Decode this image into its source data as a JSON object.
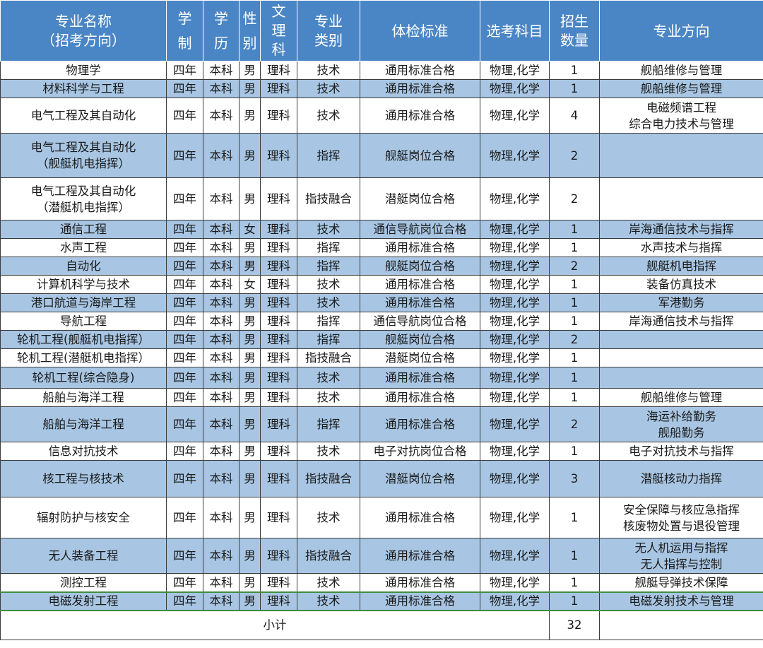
{
  "headers": {
    "major": [
      "专业名称",
      "（招考方向）"
    ],
    "duration": [
      "学",
      "制"
    ],
    "degree": [
      "学",
      "历"
    ],
    "gender": [
      "性",
      "别"
    ],
    "subject_type": [
      "文",
      "理",
      "科"
    ],
    "category": [
      "专业",
      "类别"
    ],
    "exam_standard": "体检标准",
    "elective": "选考科目",
    "quota": [
      "招生",
      "数量"
    ],
    "direction": "专业方向"
  },
  "rows": [
    {
      "major": [
        "物理学"
      ],
      "duration": "四年",
      "degree": "本科",
      "gender": "男",
      "subject_type": "理科",
      "category": "技术",
      "exam_standard": "通用标准合格",
      "elective": "物理,化学",
      "quota": "1",
      "direction": [
        "舰船维修与管理"
      ]
    },
    {
      "major": [
        "材料科学与工程"
      ],
      "duration": "四年",
      "degree": "本科",
      "gender": "男",
      "subject_type": "理科",
      "category": "技术",
      "exam_standard": "通用标准合格",
      "elective": "物理,化学",
      "quota": "1",
      "direction": [
        "舰船维修与管理"
      ]
    },
    {
      "major": [
        "电气工程及其自动化"
      ],
      "duration": "四年",
      "degree": "本科",
      "gender": "男",
      "subject_type": "理科",
      "category": "技术",
      "exam_standard": "通用标准合格",
      "elective": "物理,化学",
      "quota": "4",
      "direction": [
        "电磁频谱工程",
        "综合电力技术与管理"
      ]
    },
    {
      "major": [
        "电气工程及其自动化",
        "（舰艇机电指挥）"
      ],
      "duration": "四年",
      "degree": "本科",
      "gender": "男",
      "subject_type": "理科",
      "category": "指挥",
      "exam_standard": "舰艇岗位合格",
      "elective": "物理,化学",
      "quota": "2",
      "direction": []
    },
    {
      "major": [
        "电气工程及其自动化",
        "（潜艇机电指挥）"
      ],
      "duration": "四年",
      "degree": "本科",
      "gender": "男",
      "subject_type": "理科",
      "category": "指技融合",
      "exam_standard": "潜艇岗位合格",
      "elective": "物理,化学",
      "quota": "2",
      "direction": []
    },
    {
      "major": [
        "通信工程"
      ],
      "duration": "四年",
      "degree": "本科",
      "gender": "女",
      "subject_type": "理科",
      "category": "技术",
      "exam_standard": "通信导航岗位合格",
      "elective": "物理,化学",
      "quota": "1",
      "direction": [
        "岸海通信技术与指挥"
      ]
    },
    {
      "major": [
        "水声工程"
      ],
      "duration": "四年",
      "degree": "本科",
      "gender": "男",
      "subject_type": "理科",
      "category": "指挥",
      "exam_standard": "通用标准合格",
      "elective": "物理,化学",
      "quota": "1",
      "direction": [
        "水声技术与指挥"
      ]
    },
    {
      "major": [
        "自动化"
      ],
      "duration": "四年",
      "degree": "本科",
      "gender": "男",
      "subject_type": "理科",
      "category": "指挥",
      "exam_standard": "舰艇岗位合格",
      "elective": "物理,化学",
      "quota": "2",
      "direction": [
        "舰艇机电指挥"
      ]
    },
    {
      "major": [
        "计算机科学与技术"
      ],
      "duration": "四年",
      "degree": "本科",
      "gender": "女",
      "subject_type": "理科",
      "category": "技术",
      "exam_standard": "通用标准合格",
      "elective": "物理,化学",
      "quota": "1",
      "direction": [
        "装备仿真技术"
      ]
    },
    {
      "major": [
        "港口航道与海岸工程"
      ],
      "duration": "四年",
      "degree": "本科",
      "gender": "男",
      "subject_type": "理科",
      "category": "技术",
      "exam_standard": "通用标准合格",
      "elective": "物理,化学",
      "quota": "1",
      "direction": [
        "军港勤务"
      ]
    },
    {
      "major": [
        "导航工程"
      ],
      "duration": "四年",
      "degree": "本科",
      "gender": "男",
      "subject_type": "理科",
      "category": "指挥",
      "exam_standard": "通信导航岗位合格",
      "elective": "物理,化学",
      "quota": "1",
      "direction": [
        "岸海通信技术与指挥"
      ]
    },
    {
      "major": [
        "轮机工程(舰艇机电指挥）"
      ],
      "duration": "四年",
      "degree": "本科",
      "gender": "男",
      "subject_type": "理科",
      "category": "指挥",
      "exam_standard": "舰艇岗位合格",
      "elective": "物理,化学",
      "quota": "2",
      "direction": []
    },
    {
      "major": [
        "轮机工程(潜艇机电指挥）"
      ],
      "duration": "四年",
      "degree": "本科",
      "gender": "男",
      "subject_type": "理科",
      "category": "指技融合",
      "exam_standard": "潜艇岗位合格",
      "elective": "物理,化学",
      "quota": "1",
      "direction": []
    },
    {
      "major": [
        "轮机工程(综合隐身)"
      ],
      "duration": "四年",
      "degree": "本科",
      "gender": "男",
      "subject_type": "理科",
      "category": "技术",
      "exam_standard": "通用标准合格",
      "elective": "物理,化学",
      "quota": "1",
      "direction": []
    },
    {
      "major": [
        "船舶与海洋工程"
      ],
      "duration": "四年",
      "degree": "本科",
      "gender": "男",
      "subject_type": "理科",
      "category": "技术",
      "exam_standard": "通用标准合格",
      "elective": "物理,化学",
      "quota": "1",
      "direction": [
        "舰船维修与管理"
      ]
    },
    {
      "major": [
        "船舶与海洋工程"
      ],
      "duration": "四年",
      "degree": "本科",
      "gender": "男",
      "subject_type": "理科",
      "category": "指挥",
      "exam_standard": "通用标准合格",
      "elective": "物理,化学",
      "quota": "2",
      "direction": [
        "海运补给勤务",
        "舰船勤务"
      ]
    },
    {
      "major": [
        "信息对抗技术"
      ],
      "duration": "四年",
      "degree": "本科",
      "gender": "男",
      "subject_type": "理科",
      "category": "技术",
      "exam_standard": "电子对抗岗位合格",
      "elective": "物理,化学",
      "quota": "1",
      "direction": [
        "电子对抗技术与指挥"
      ]
    },
    {
      "major": [
        "核工程与核技术"
      ],
      "duration": "四年",
      "degree": "本科",
      "gender": "男",
      "subject_type": "理科",
      "category": "指技融合",
      "exam_standard": "潜艇岗位合格",
      "elective": "物理,化学",
      "quota": "3",
      "direction": [
        "潜艇核动力指挥"
      ]
    },
    {
      "major": [
        "辐射防护与核安全"
      ],
      "duration": "四年",
      "degree": "本科",
      "gender": "男",
      "subject_type": "理科",
      "category": "技术",
      "exam_standard": "通用标准合格",
      "elective": "物理,化学",
      "quota": "1",
      "direction": [
        "安全保障与核应急指挥",
        "核废物处置与退役管理"
      ]
    },
    {
      "major": [
        "无人装备工程"
      ],
      "duration": "四年",
      "degree": "本科",
      "gender": "男",
      "subject_type": "理科",
      "category": "指技融合",
      "exam_standard": "通用标准合格",
      "elective": "物理,化学",
      "quota": "1",
      "direction": [
        "无人机运用与指挥",
        "无人指挥与控制"
      ]
    },
    {
      "major": [
        "测控工程"
      ],
      "duration": "四年",
      "degree": "本科",
      "gender": "男",
      "subject_type": "理科",
      "category": "技术",
      "exam_standard": "通用标准合格",
      "elective": "物理,化学",
      "quota": "1",
      "direction": [
        "舰艇导弹技术保障"
      ]
    },
    {
      "major": [
        "电磁发射工程"
      ],
      "duration": "四年",
      "degree": "本科",
      "gender": "男",
      "subject_type": "理科",
      "category": "技术",
      "exam_standard": "通用标准合格",
      "elective": "物理,化学",
      "quota": "1",
      "direction": [
        "电磁发射技术与管理"
      ]
    }
  ],
  "footer": {
    "label": "小计",
    "total": "32"
  },
  "colors": {
    "header_bg": "#4a86c5",
    "row_blue": "#a8c6e3",
    "row_white": "#ffffff",
    "highlight_border": "#3e8e3e"
  }
}
